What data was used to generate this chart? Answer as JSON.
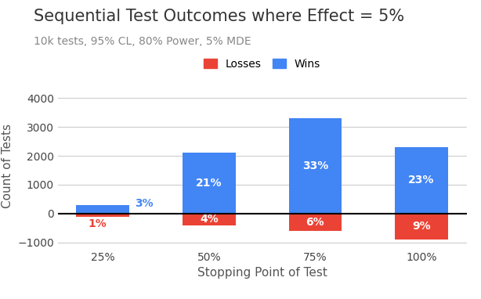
{
  "title": "Sequential Test Outcomes where Effect = 5%",
  "subtitle": "10k tests, 95% CL, 80% Power, 5% MDE",
  "xlabel": "Stopping Point of Test",
  "ylabel": "Count of Tests",
  "categories": [
    "25%",
    "50%",
    "75%",
    "100%"
  ],
  "wins": [
    300,
    2100,
    3300,
    2300
  ],
  "losses": [
    -100,
    -400,
    -600,
    -900
  ],
  "wins_pct": [
    "3%",
    "21%",
    "33%",
    "23%"
  ],
  "losses_pct": [
    "1%",
    "4%",
    "6%",
    "9%"
  ],
  "win_color": "#4285F4",
  "loss_color": "#EA4335",
  "ylim": [
    -1200,
    4500
  ],
  "yticks": [
    -1000,
    0,
    1000,
    2000,
    3000,
    4000
  ],
  "background_color": "#ffffff",
  "title_fontsize": 15,
  "subtitle_fontsize": 10,
  "axis_label_fontsize": 11,
  "tick_fontsize": 10,
  "bar_width": 0.5,
  "legend_fontsize": 10
}
